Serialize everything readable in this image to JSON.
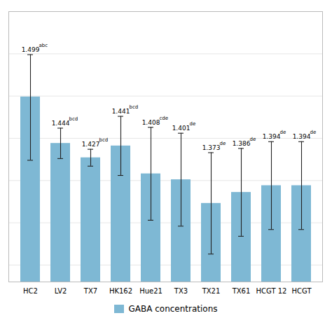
{
  "chart_data": {
    "type": "bar",
    "categories": [
      "HC2",
      "LV2",
      "TX7",
      "HK162",
      "Hue21",
      "TX3",
      "TX21",
      "TX61",
      "HCGT 12",
      "HCGT"
    ],
    "series": [
      {
        "name": "GABA concentrations",
        "color": "#7eb8d4",
        "values": [
          1.499,
          1.444,
          1.427,
          1.441,
          1.408,
          1.401,
          1.373,
          1.386,
          1.394,
          1.394
        ],
        "error_upper": [
          0.05,
          0.018,
          0.01,
          0.035,
          0.055,
          0.055,
          0.06,
          0.052,
          0.052,
          0.052
        ],
        "error_lower": [
          0.075,
          0.018,
          0.01,
          0.035,
          0.055,
          0.055,
          0.06,
          0.052,
          0.052,
          0.052
        ],
        "superscripts": [
          "abc",
          "bcd",
          "bcd",
          "bcd",
          "cde",
          "de",
          "de",
          "de",
          "de",
          "de"
        ]
      }
    ],
    "ylim": [
      1.28,
      1.6
    ],
    "yticks": [
      1.3,
      1.35,
      1.4,
      1.45,
      1.5,
      1.55,
      1.6
    ],
    "grid": true,
    "tick_labels": "x",
    "data_labels": true,
    "legend": "bottom"
  }
}
